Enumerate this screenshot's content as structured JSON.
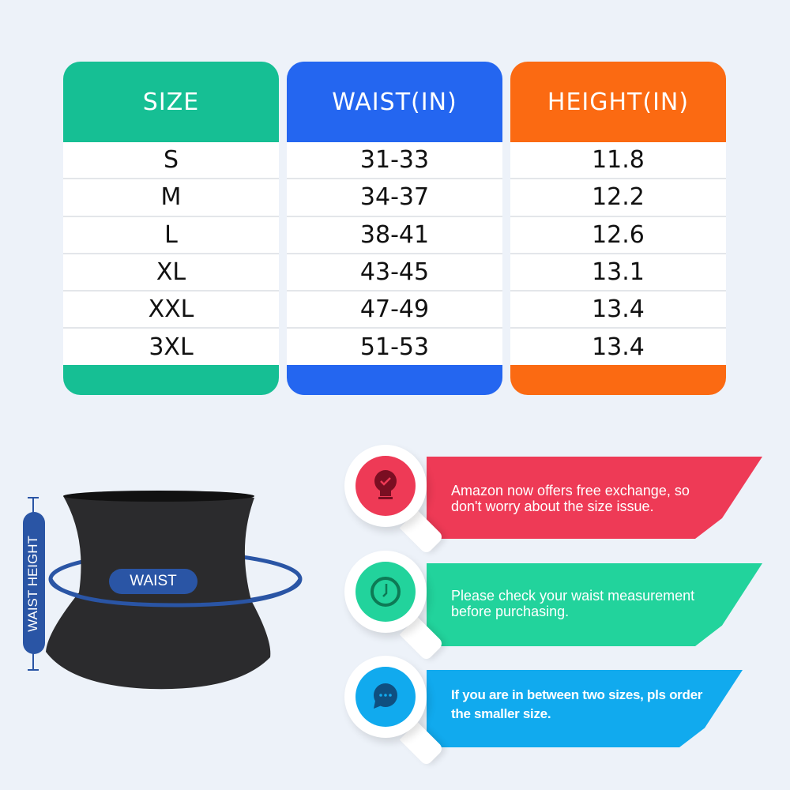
{
  "table": {
    "columns": [
      {
        "header": "SIZE",
        "color": "#16bf94",
        "values": [
          "S",
          "M",
          "L",
          "XL",
          "XXL",
          "3XL"
        ]
      },
      {
        "header": "WAIST(IN)",
        "color": "#2466f0",
        "values": [
          "31-33",
          "34-37",
          "38-41",
          "43-45",
          "47-49",
          "51-53"
        ]
      },
      {
        "header": "HEIGHT(IN)",
        "color": "#fb6a12",
        "values": [
          "11.8",
          "12.2",
          "12.6",
          "13.1",
          "13.4",
          "13.4"
        ]
      }
    ]
  },
  "diagram": {
    "waist_label": "WAIST",
    "height_label": "WAIST HEIGHT",
    "accent": "#2a55a5"
  },
  "tips": [
    {
      "icon": "lightbulb-check-icon",
      "color": "#ee3a56",
      "text_line1": "Amazon now offers free exchange, so",
      "text_line2": "don't worry about the size issue."
    },
    {
      "icon": "clock-icon",
      "color": "#22d39c",
      "text_line1": "Please check your waist measurement",
      "text_line2": "before purchasing."
    },
    {
      "icon": "chat-bubble-icon",
      "color": "#11aaee",
      "text_line1": "If you are in between two sizes, pls order",
      "text_line2": "the smaller size."
    }
  ]
}
